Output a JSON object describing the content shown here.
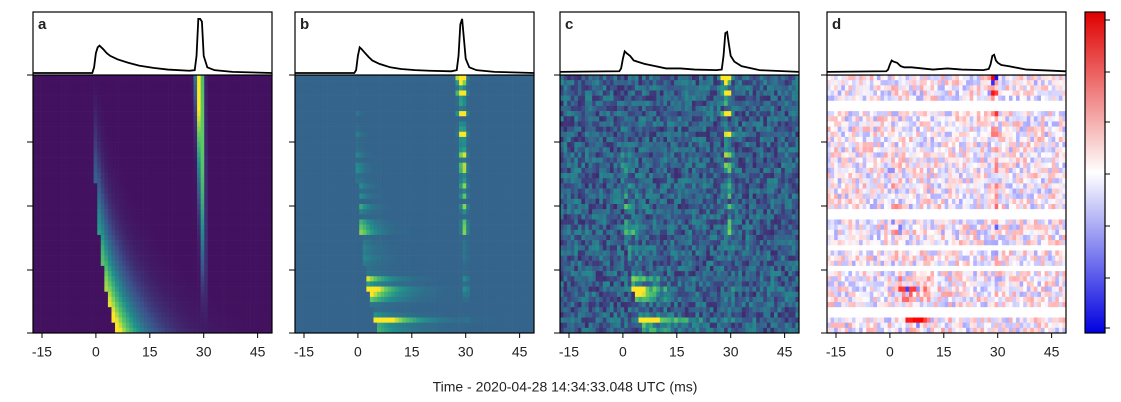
{
  "chart_data": [
    {
      "type": "line",
      "panel_label": "a",
      "colormap": "viridis",
      "color": "#000000",
      "x": [
        -17.5,
        -1,
        -0.5,
        0,
        0.5,
        1,
        2,
        3,
        4,
        6,
        9,
        12,
        16,
        20,
        26,
        27.5,
        28,
        28.5,
        29,
        29.5,
        30,
        31,
        33,
        38,
        49
      ],
      "values": [
        0,
        0,
        0.1,
        0.35,
        0.45,
        0.48,
        0.42,
        0.35,
        0.3,
        0.24,
        0.18,
        0.13,
        0.09,
        0.06,
        0.04,
        0.05,
        0.3,
        0.95,
        0.95,
        0.9,
        0.3,
        0.1,
        0.05,
        0.02,
        0
      ],
      "xlim": [
        -17.5,
        49
      ],
      "ylim": [
        0,
        1
      ],
      "xticks": [
        -15,
        0,
        15,
        30,
        45
      ]
    },
    {
      "type": "line",
      "panel_label": "b",
      "colormap": "viridis-scint",
      "color": "#000000",
      "x": [
        -17.5,
        -1,
        -0.5,
        0,
        0.5,
        1,
        2,
        3,
        4,
        6,
        9,
        12,
        16,
        20,
        26,
        27.5,
        28,
        28.5,
        29,
        29.5,
        30,
        31,
        33,
        38,
        49
      ],
      "values": [
        0,
        0,
        0.05,
        0.3,
        0.45,
        0.42,
        0.35,
        0.28,
        0.22,
        0.16,
        0.1,
        0.07,
        0.05,
        0.04,
        0.03,
        0.05,
        0.3,
        0.85,
        0.95,
        0.6,
        0.25,
        0.1,
        0.05,
        0.02,
        0
      ],
      "xlim": [
        -17.5,
        49
      ],
      "ylim": [
        0,
        1
      ],
      "xticks": [
        -15,
        0,
        15,
        30,
        45
      ]
    },
    {
      "type": "line",
      "panel_label": "c",
      "colormap": "viridis-noisy",
      "color": "#000000",
      "x": [
        -17.5,
        -1,
        -0.5,
        0,
        0.5,
        1,
        2,
        3,
        4,
        6,
        9,
        12,
        16,
        20,
        26,
        27.5,
        28,
        28.5,
        29,
        29.5,
        30,
        31,
        33,
        38,
        49
      ],
      "values": [
        0.02,
        0.03,
        0.08,
        0.25,
        0.38,
        0.35,
        0.3,
        0.22,
        0.2,
        0.16,
        0.12,
        0.08,
        0.08,
        0.06,
        0.05,
        0.06,
        0.3,
        0.7,
        0.72,
        0.5,
        0.3,
        0.2,
        0.12,
        0.05,
        0.02
      ],
      "xlim": [
        -17.5,
        49
      ],
      "ylim": [
        0,
        1
      ],
      "xticks": [
        -15,
        0,
        15,
        30,
        45
      ]
    },
    {
      "type": "line",
      "panel_label": "d",
      "colormap": "bwr",
      "color": "#000000",
      "x": [
        -17.5,
        -1,
        -0.5,
        0,
        0.5,
        1,
        2,
        3,
        4,
        6,
        9,
        12,
        16,
        20,
        26,
        27.5,
        28,
        28.5,
        29,
        29.5,
        30,
        31,
        33,
        38,
        49
      ],
      "values": [
        0.02,
        0.03,
        0.06,
        0.15,
        0.22,
        0.2,
        0.18,
        0.12,
        0.1,
        0.1,
        0.08,
        0.06,
        0.08,
        0.06,
        0.05,
        0.07,
        0.15,
        0.3,
        0.32,
        0.22,
        0.18,
        0.14,
        0.12,
        0.06,
        0.03
      ],
      "xlim": [
        -17.5,
        49
      ],
      "ylim": [
        0,
        1
      ],
      "xticks": [
        -15,
        0,
        15,
        30,
        45
      ]
    }
  ],
  "xlabel": "Time - 2020-04-28 14:34:33.048 UTC (ms)"
}
